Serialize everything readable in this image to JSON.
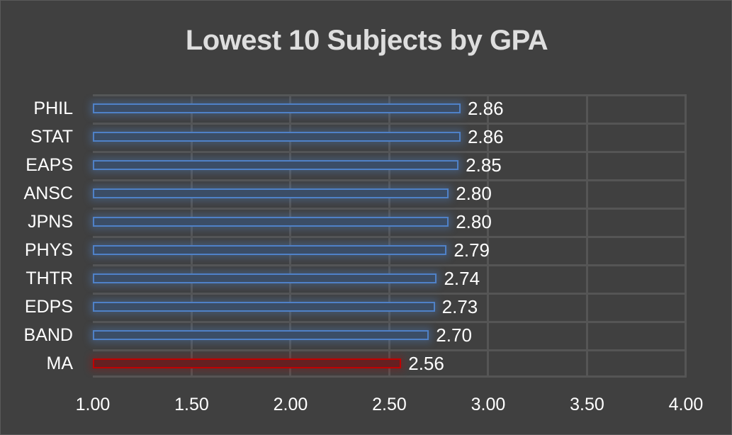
{
  "chart_data": {
    "type": "bar",
    "orientation": "horizontal",
    "title": "Lowest 10 Subjects by GPA",
    "xlabel": "",
    "ylabel": "",
    "xlim": [
      1.0,
      4.0
    ],
    "x_ticks": [
      "1.00",
      "1.50",
      "2.00",
      "2.50",
      "3.00",
      "3.50",
      "4.00"
    ],
    "grid": true,
    "legend": null,
    "categories": [
      "PHIL",
      "STAT",
      "EAPS",
      "ANSC",
      "JPNS",
      "PHYS",
      "THTR",
      "EDPS",
      "BAND",
      "MA"
    ],
    "values": [
      2.86,
      2.86,
      2.85,
      2.8,
      2.8,
      2.79,
      2.74,
      2.73,
      2.7,
      2.56
    ],
    "value_labels": [
      "2.86",
      "2.86",
      "2.85",
      "2.80",
      "2.80",
      "2.79",
      "2.74",
      "2.73",
      "2.70",
      "2.56"
    ],
    "highlight": {
      "category": "MA",
      "color": "#c00000"
    },
    "colors": {
      "default_bar": "#4f81c7",
      "highlight_bar": "#c00000",
      "background": "#404040",
      "grid": "#555555",
      "text": "#ffffff",
      "title": "#dedede"
    }
  },
  "rows": [
    {
      "cat": "PHIL",
      "val": 2.86,
      "label": "2.86",
      "color": "blue"
    },
    {
      "cat": "STAT",
      "val": 2.86,
      "label": "2.86",
      "color": "blue"
    },
    {
      "cat": "EAPS",
      "val": 2.85,
      "label": "2.85",
      "color": "blue"
    },
    {
      "cat": "ANSC",
      "val": 2.8,
      "label": "2.80",
      "color": "blue"
    },
    {
      "cat": "JPNS",
      "val": 2.8,
      "label": "2.80",
      "color": "blue"
    },
    {
      "cat": "PHYS",
      "val": 2.79,
      "label": "2.79",
      "color": "blue"
    },
    {
      "cat": "THTR",
      "val": 2.74,
      "label": "2.74",
      "color": "blue"
    },
    {
      "cat": "EDPS",
      "val": 2.73,
      "label": "2.73",
      "color": "blue"
    },
    {
      "cat": "BAND",
      "val": 2.7,
      "label": "2.70",
      "color": "blue"
    },
    {
      "cat": "MA",
      "val": 2.56,
      "label": "2.56",
      "color": "red"
    }
  ]
}
